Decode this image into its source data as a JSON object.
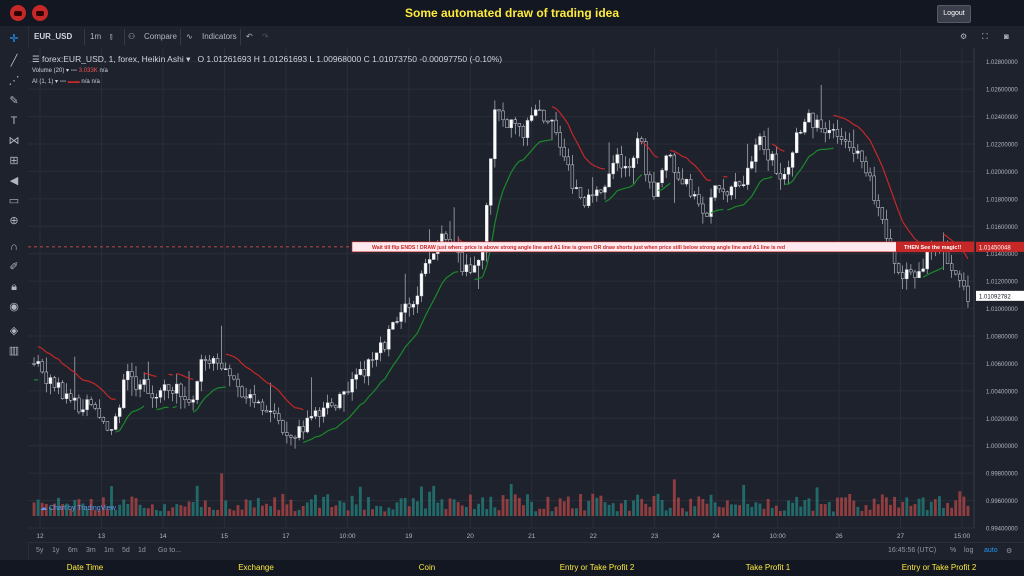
{
  "header": {
    "title": "Some automated draw of trading idea",
    "logout_label": "Logout"
  },
  "toolbar": {
    "symbol": "EUR_USD",
    "interval": "1m",
    "compare_label": "Compare",
    "indicators_label": "Indicators"
  },
  "legend": {
    "series_title": "forex:EUR_USD, 1, forex, Heikin Ashi",
    "open": "O 1.01261693",
    "high": "H 1.01261693",
    "low": "L 1.00968000",
    "close": "C 1.01073750",
    "change": "-0.00097750 (-0.10%)",
    "volume_label": "Volume (20)",
    "volume_value": "3.033K",
    "volume_na": "n/a",
    "ai_label": "AI (1, 1)",
    "ai_na1": "n/a",
    "ai_na2": "n/a"
  },
  "annotation": {
    "text": "Wait till flip ENDS !   DRAW just when:  price is above strong angle line and A1 line is green        OR         draw shorts just when price still below strong angle line and A1 line is red",
    "callout": "THEN See the magic!!"
  },
  "price_labels": {
    "highlight": "1.01450048",
    "current": "1.01092782"
  },
  "chart_data": {
    "type": "candlestick",
    "instrument": "forex:EUR_USD",
    "y_ticks": [
      "1.02800000",
      "1.02600000",
      "1.02400000",
      "1.02200000",
      "1.02000000",
      "1.01800000",
      "1.01600000",
      "1.01400000",
      "1.01200000",
      "1.01000000",
      "1.00800000",
      "1.00600000",
      "1.00400000",
      "1.00200000",
      "1.00000000",
      "0.99800000",
      "0.99600000",
      "0.99400000"
    ],
    "ylim": [
      0.994,
      1.029
    ],
    "x_ticks": [
      "12",
      "13",
      "14",
      "15",
      "17",
      "10:00",
      "19",
      "20",
      "21",
      "22",
      "23",
      "24",
      "10:00",
      "26",
      "27",
      "15:00"
    ],
    "close_path": [
      1.006,
      1.005,
      1.004,
      1.0032,
      1.0028,
      1.002,
      1.0012,
      1.005,
      1.0045,
      1.0038,
      1.0042,
      1.004,
      1.0035,
      1.0068,
      1.006,
      1.0048,
      1.0038,
      1.003,
      1.0022,
      1.001,
      1.0012,
      1.002,
      1.0025,
      1.0032,
      1.0045,
      1.0055,
      1.0065,
      1.008,
      1.0095,
      1.011,
      1.0135,
      1.016,
      1.014,
      1.0125,
      1.0135,
      1.024,
      1.0235,
      1.0228,
      1.024,
      1.0242,
      1.0215,
      1.019,
      1.0178,
      1.0182,
      1.021,
      1.02,
      1.0225,
      1.018,
      1.021,
      1.02,
      1.0185,
      1.0165,
      1.019,
      1.0185,
      1.019,
      1.0225,
      1.021,
      1.0195,
      1.023,
      1.024,
      1.0225,
      1.023,
      1.0222,
      1.021,
      1.018,
      1.014,
      1.0125,
      1.012,
      1.014,
      1.0145,
      1.013,
      1.011
    ],
    "volume_ylim": [
      0,
      120
    ]
  },
  "time_buttons": [
    "5y",
    "1y",
    "6m",
    "3m",
    "1m",
    "5d",
    "1d"
  ],
  "goto_label": "Go to...",
  "bottom_right": {
    "clock": "16:45:56 (UTC)",
    "percent": "%",
    "log": "log",
    "auto": "auto"
  },
  "tv_logo": "Chart by TradingView",
  "footer": [
    "Date Time",
    "Exchange",
    "Coin",
    "Entry or Take Profit 2",
    "Take Profit 1",
    "Entry or Take Profit 2"
  ],
  "colors": {
    "up": "#26a69a",
    "down": "#ef5350",
    "ai_green": "#1b8a2a",
    "ai_red": "#c62828",
    "accent": "#ffeb3b"
  }
}
